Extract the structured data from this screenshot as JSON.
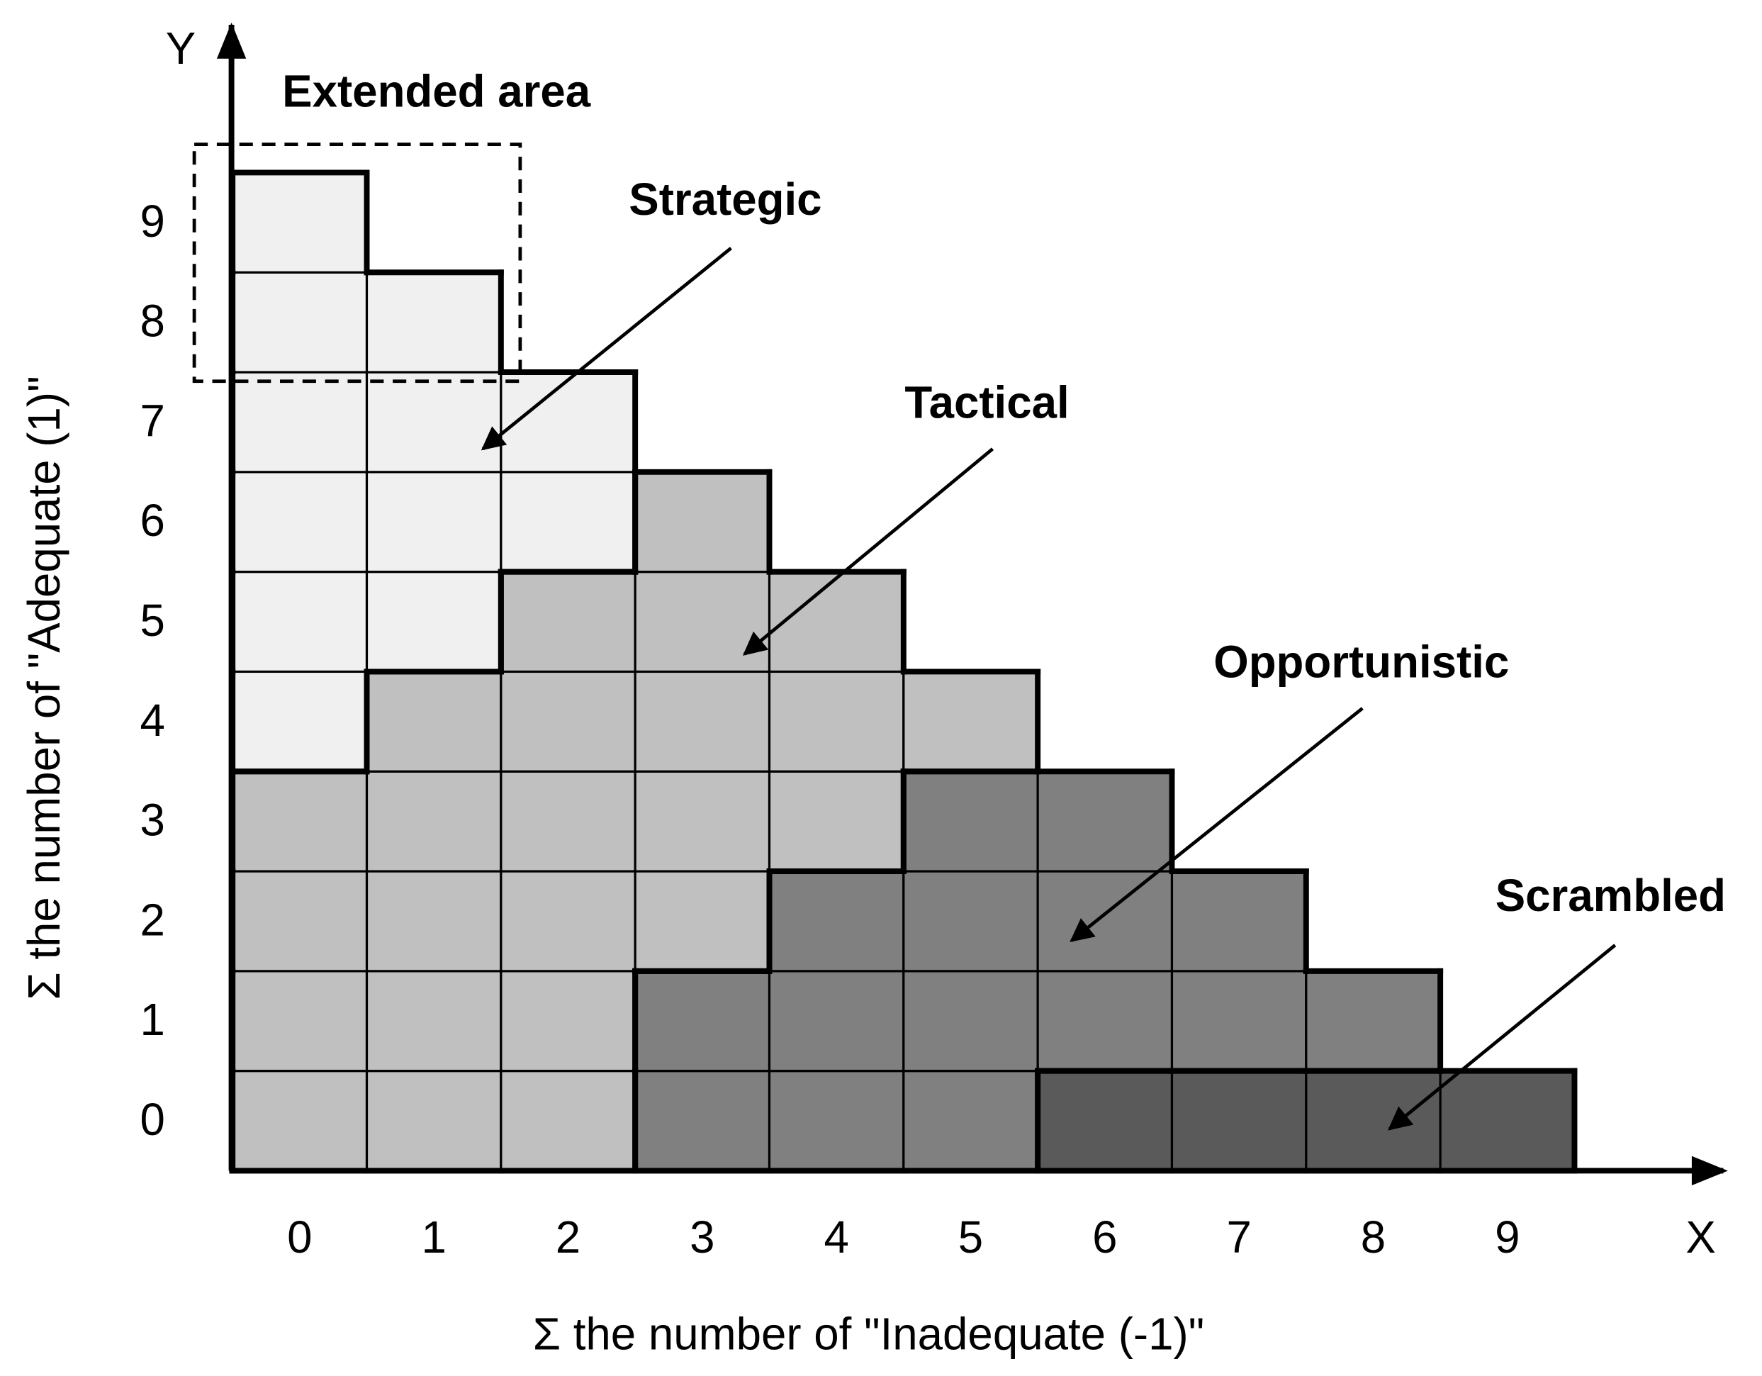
{
  "y_axis_letter": "Y",
  "x_axis_letter": "X",
  "y_axis_title": "Σ the number of \"Adequate (1)\"",
  "x_axis_title": "Σ the number of \"Inadequate (-1)\"",
  "x_ticks": [
    0,
    1,
    2,
    3,
    4,
    5,
    6,
    7,
    8,
    9
  ],
  "y_ticks": [
    0,
    1,
    2,
    3,
    4,
    5,
    6,
    7,
    8,
    9
  ],
  "extended_area_label": "Extended area",
  "regions": [
    {
      "label": "Strategic"
    },
    {
      "label": "Tactical"
    },
    {
      "label": "Opportunistic"
    },
    {
      "label": "Scrambled"
    }
  ]
}
